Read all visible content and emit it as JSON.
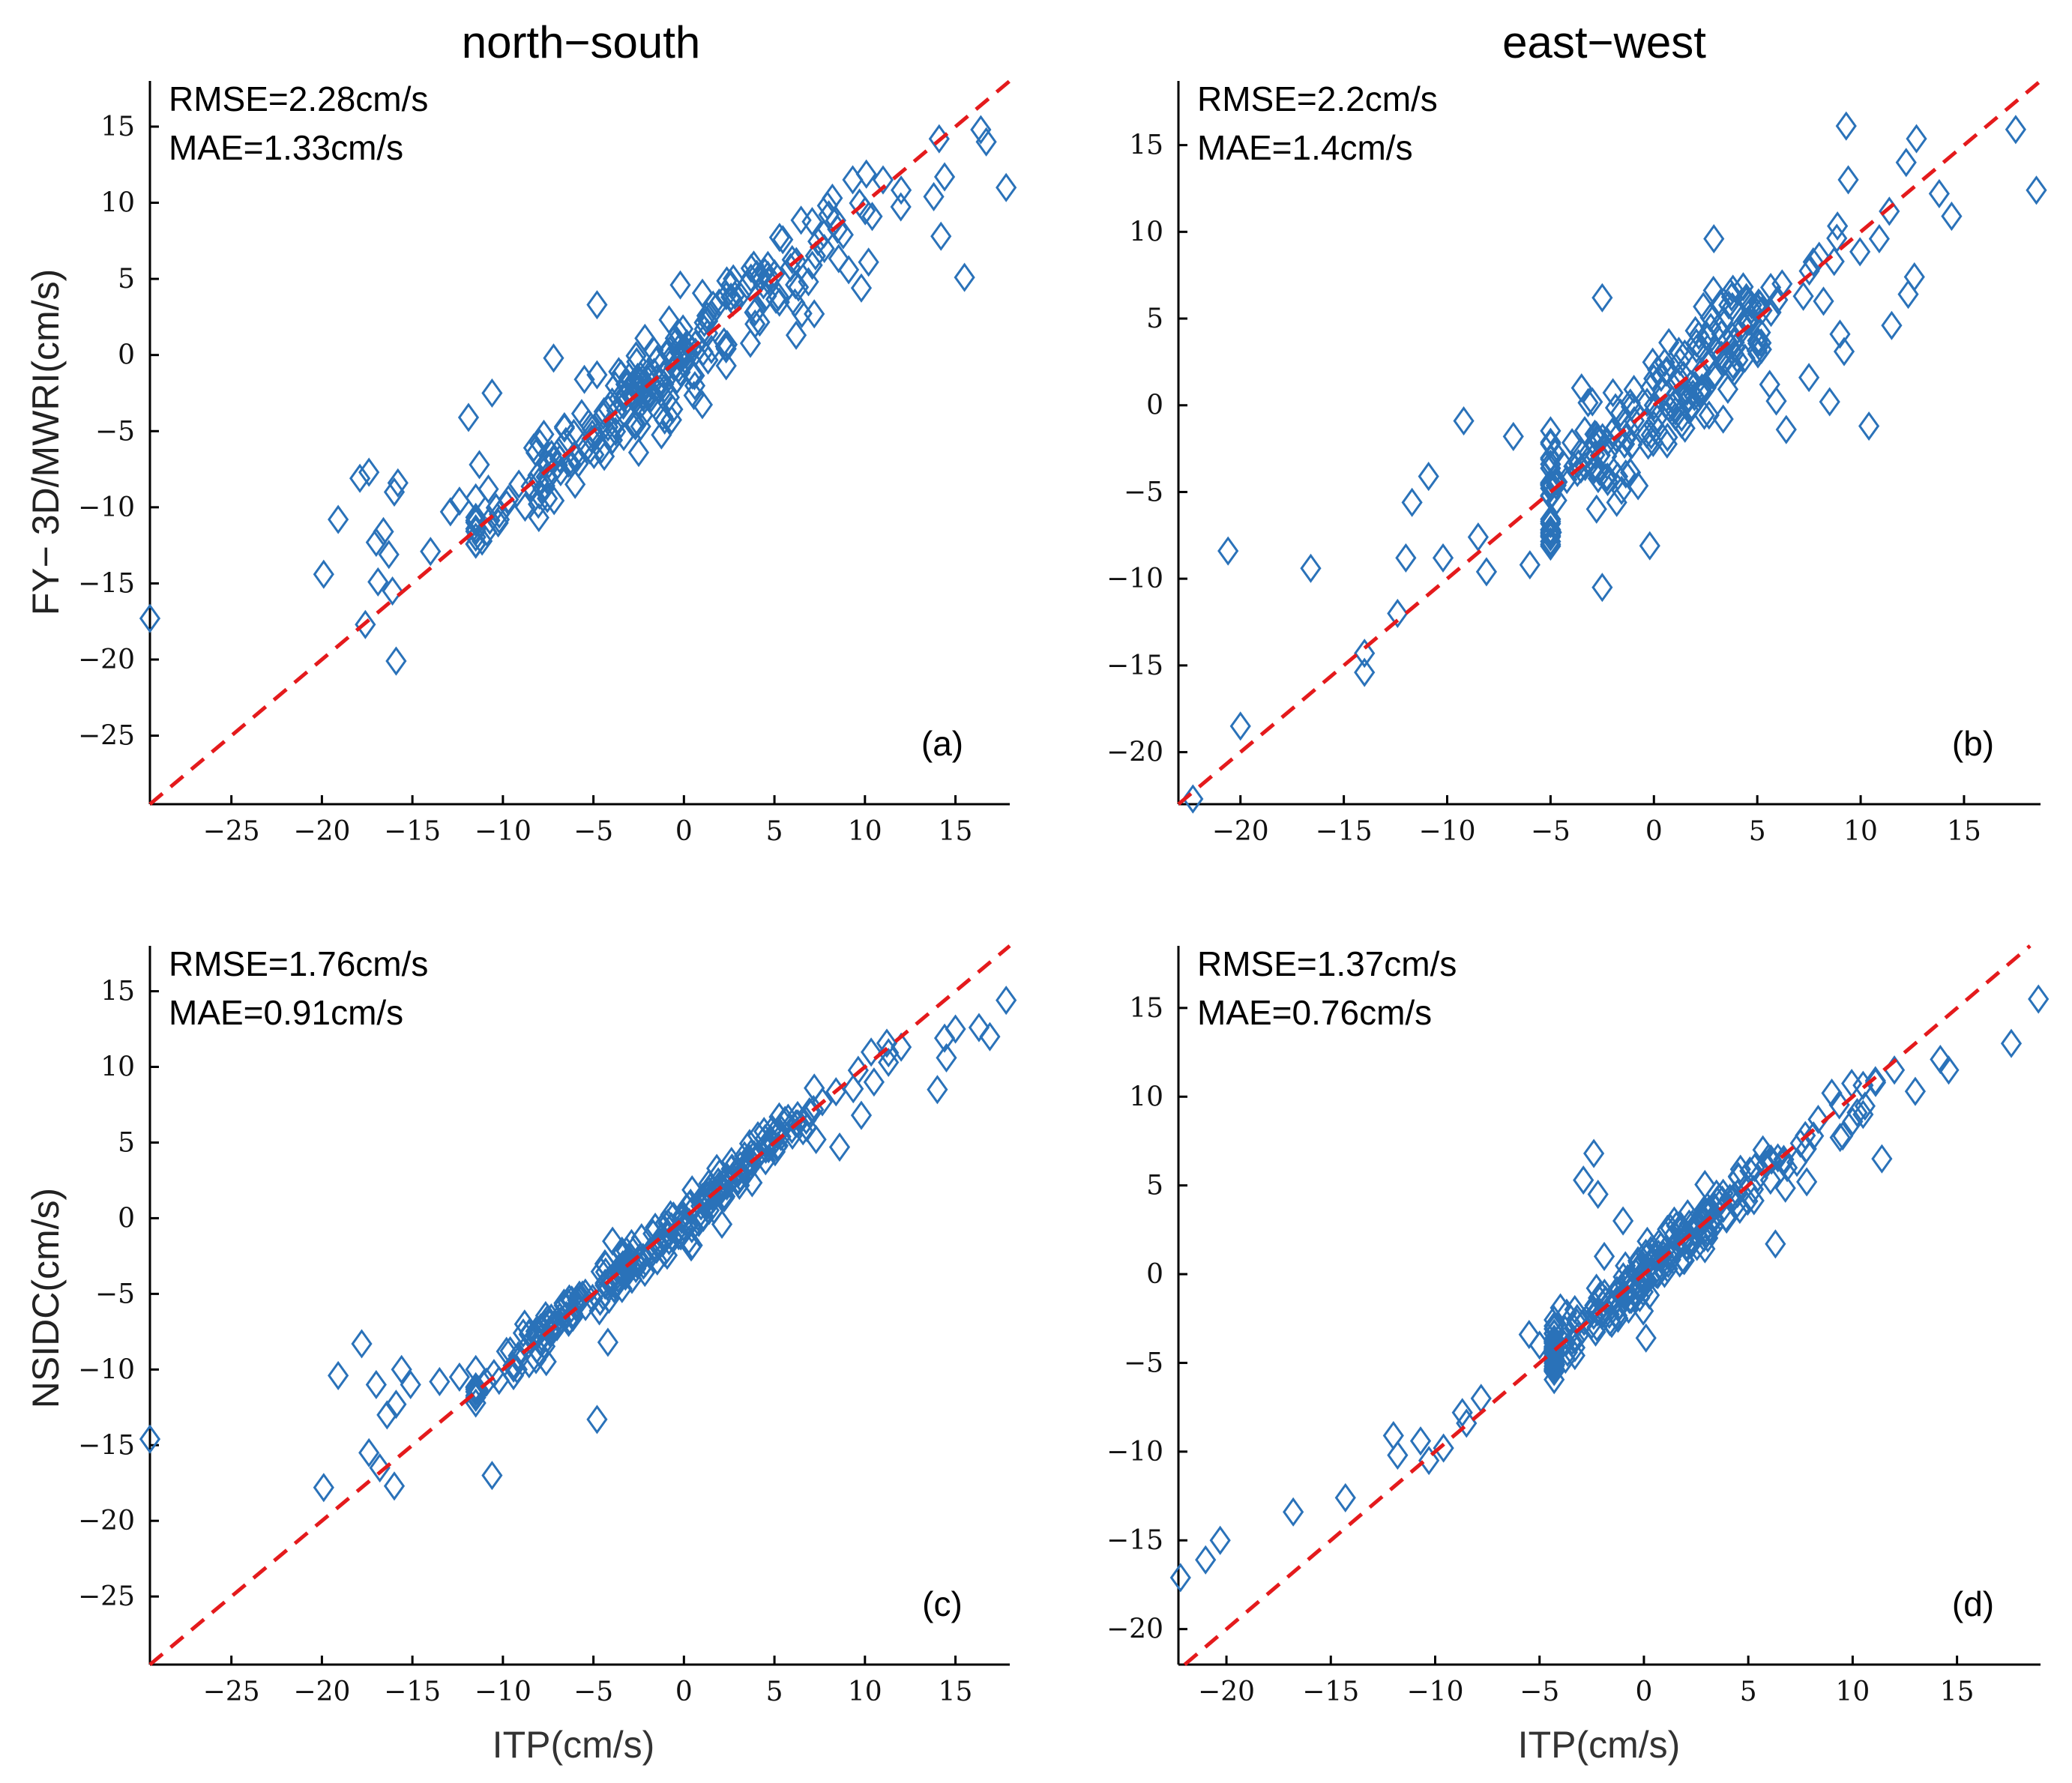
{
  "figure": {
    "column_titles": [
      "north−south",
      "east−west"
    ],
    "ylabels": [
      "FY− 3D/MWRI(cm/s)",
      "NSIDC(cm/s)"
    ],
    "xlabel": "ITP(cm/s)"
  },
  "colors": {
    "marker": "#2a72b9",
    "reference_line": "#e41a1c"
  },
  "chart_data": [
    {
      "type": "scatter",
      "panel": "(a)",
      "direction": "north−south",
      "title": "north−south",
      "xlabel": "",
      "ylabel": "FY− 3D/MWRI(cm/s)",
      "xlim": [
        -29.5,
        18
      ],
      "ylim": [
        -29.5,
        18
      ],
      "xticks": [
        -25,
        -20,
        -15,
        -10,
        -5,
        0,
        5,
        10,
        15
      ],
      "yticks": [
        -25,
        -20,
        -15,
        -10,
        -5,
        0,
        5,
        10,
        15
      ],
      "xtick_labels": [
        "−25",
        "−20",
        "−15",
        "−10",
        "−5",
        "0",
        "5",
        "10",
        "15"
      ],
      "ytick_labels": [
        "−25",
        "−20",
        "−15",
        "−10",
        "−5",
        "0",
        "5",
        "10",
        "15"
      ],
      "rmse_label": "RMSE=2.28cm/s",
      "mae_label": "MAE=1.33cm/s",
      "reference_line": "y = x",
      "trend": {
        "scatter_sd": 1.4,
        "n_bulk": 230,
        "x_mean": -1.5,
        "x_sd": 5.5
      },
      "points": [
        [
          -29.5,
          -17.3
        ],
        [
          -19.9,
          -14.4
        ],
        [
          -19.1,
          -10.8
        ],
        [
          -17.9,
          -8.1
        ],
        [
          -17.4,
          -7.7
        ],
        [
          -17.0,
          -12.3
        ],
        [
          -16.6,
          -11.6
        ],
        [
          -16.0,
          -9.0
        ],
        [
          -15.8,
          -8.4
        ],
        [
          -17.6,
          -17.7
        ],
        [
          -16.9,
          -14.9
        ],
        [
          -16.3,
          -13.1
        ],
        [
          -16.1,
          -15.5
        ],
        [
          -15.9,
          -20.1
        ],
        [
          -14.0,
          -12.9
        ],
        [
          -12.9,
          -10.3
        ],
        [
          -12.4,
          -9.6
        ],
        [
          -11.9,
          -4.1
        ],
        [
          -11.5,
          -12.4
        ],
        [
          -11.3,
          -7.2
        ],
        [
          -10.6,
          -2.5
        ],
        [
          -10.2,
          -10.8
        ],
        [
          -9.8,
          -9.8
        ],
        [
          -8.3,
          -6.1
        ],
        [
          -7.2,
          -0.2
        ],
        [
          -6.6,
          -4.8
        ],
        [
          -5.5,
          -1.6
        ],
        [
          -4.8,
          -1.3
        ],
        [
          -4.8,
          3.3
        ],
        [
          -2.5,
          -6.4
        ],
        [
          -0.2,
          4.6
        ],
        [
          0.2,
          0.2
        ],
        [
          2.6,
          3.8
        ],
        [
          6.2,
          1.3
        ],
        [
          7.2,
          2.7
        ],
        [
          8.2,
          10.3
        ],
        [
          8.8,
          7.9
        ],
        [
          9.1,
          5.6
        ],
        [
          9.8,
          4.4
        ],
        [
          10.2,
          6.1
        ],
        [
          10.4,
          9.1
        ],
        [
          11.0,
          11.5
        ],
        [
          13.8,
          10.4
        ],
        [
          14.1,
          14.2
        ],
        [
          14.2,
          7.8
        ],
        [
          14.4,
          11.7
        ],
        [
          15.5,
          5.1
        ],
        [
          16.4,
          14.8
        ],
        [
          16.7,
          14.0
        ],
        [
          17.8,
          11.0
        ]
      ]
    },
    {
      "type": "scatter",
      "panel": "(b)",
      "direction": "east−west",
      "title": "east−west",
      "xlabel": "",
      "ylabel": "",
      "xlim": [
        -23,
        18.7
      ],
      "ylim": [
        -23,
        18.7
      ],
      "xticks": [
        -20,
        -15,
        -10,
        -5,
        0,
        5,
        10,
        15
      ],
      "yticks": [
        -20,
        -15,
        -10,
        -5,
        0,
        5,
        10,
        15
      ],
      "xtick_labels": [
        "−20",
        "−15",
        "−10",
        "−5",
        "0",
        "5",
        "10",
        "15"
      ],
      "ytick_labels": [
        "−20",
        "−15",
        "−10",
        "−5",
        "0",
        "5",
        "10",
        "15"
      ],
      "rmse_label": "RMSE=2.2cm/s",
      "mae_label": "MAE=1.4cm/s",
      "reference_line": "y = x",
      "trend": {
        "scatter_sd": 1.6,
        "n_bulk": 220,
        "x_mean": 0.3,
        "x_sd": 4.5
      },
      "points": [
        [
          -22.3,
          -22.7
        ],
        [
          -20.6,
          -8.4
        ],
        [
          -20.0,
          -18.5
        ],
        [
          -16.6,
          -9.4
        ],
        [
          -14.0,
          -14.3
        ],
        [
          -14.0,
          -15.4
        ],
        [
          -12.4,
          -12.0
        ],
        [
          -12.0,
          -8.8
        ],
        [
          -11.7,
          -5.6
        ],
        [
          -10.9,
          -4.1
        ],
        [
          -10.2,
          -8.8
        ],
        [
          -9.2,
          -0.9
        ],
        [
          -8.5,
          -7.6
        ],
        [
          -8.1,
          -9.6
        ],
        [
          -6.8,
          -1.8
        ],
        [
          -6.0,
          -9.2
        ],
        [
          -3.5,
          1.0
        ],
        [
          -2.5,
          6.2
        ],
        [
          -2.5,
          -10.5
        ],
        [
          -1.8,
          -5.6
        ],
        [
          -0.2,
          -8.1
        ],
        [
          0.2,
          -1.5
        ],
        [
          2.9,
          9.6
        ],
        [
          5.6,
          1.2
        ],
        [
          6.2,
          7.0
        ],
        [
          6.4,
          -1.4
        ],
        [
          7.5,
          1.6
        ],
        [
          8.5,
          0.2
        ],
        [
          9.0,
          4.1
        ],
        [
          9.3,
          16.1
        ],
        [
          9.2,
          3.1
        ],
        [
          9.4,
          13.0
        ],
        [
          10.4,
          -1.2
        ],
        [
          10.9,
          9.6
        ],
        [
          11.5,
          4.6
        ],
        [
          12.2,
          14.0
        ],
        [
          12.3,
          6.4
        ],
        [
          12.6,
          7.4
        ],
        [
          13.8,
          12.2
        ],
        [
          14.4,
          10.9
        ],
        [
          17.5,
          15.9
        ],
        [
          18.5,
          12.4
        ]
      ]
    },
    {
      "type": "scatter",
      "panel": "(c)",
      "direction": "north−south",
      "title": "",
      "xlabel": "ITP(cm/s)",
      "ylabel": "NSIDC(cm/s)",
      "xlim": [
        -29.5,
        18
      ],
      "ylim": [
        -29.5,
        18
      ],
      "xticks": [
        -25,
        -20,
        -15,
        -10,
        -5,
        0,
        5,
        10,
        15
      ],
      "yticks": [
        -25,
        -20,
        -15,
        -10,
        -5,
        0,
        5,
        10,
        15
      ],
      "xtick_labels": [
        "−25",
        "−20",
        "−15",
        "−10",
        "−5",
        "0",
        "5",
        "10",
        "15"
      ],
      "ytick_labels": [
        "−25",
        "−20",
        "−15",
        "−10",
        "−5",
        "0",
        "5",
        "10",
        "15"
      ],
      "rmse_label": "RMSE=1.76cm/s",
      "mae_label": "MAE=0.91cm/s",
      "reference_line": "y = x",
      "trend": {
        "scatter_sd": 0.7,
        "n_bulk": 260,
        "x_mean": -1.0,
        "x_sd": 5.5
      },
      "points": [
        [
          -29.5,
          -14.6
        ],
        [
          -19.9,
          -17.8
        ],
        [
          -19.1,
          -10.4
        ],
        [
          -17.8,
          -8.3
        ],
        [
          -17.4,
          -15.5
        ],
        [
          -17.0,
          -11.0
        ],
        [
          -16.8,
          -16.5
        ],
        [
          -16.4,
          -13.0
        ],
        [
          -16.0,
          -17.7
        ],
        [
          -15.9,
          -12.3
        ],
        [
          -15.6,
          -10.0
        ],
        [
          -15.1,
          -11.0
        ],
        [
          -13.5,
          -10.8
        ],
        [
          -12.4,
          -10.5
        ],
        [
          -11.5,
          -10.0
        ],
        [
          -10.6,
          -17.0
        ],
        [
          -9.8,
          -8.8
        ],
        [
          -8.8,
          -7.0
        ],
        [
          -4.8,
          -13.3
        ],
        [
          -4.2,
          -8.2
        ],
        [
          0.4,
          -1.9
        ],
        [
          2.1,
          -0.4
        ],
        [
          7.3,
          5.2
        ],
        [
          8.6,
          4.7
        ],
        [
          9.8,
          6.8
        ],
        [
          10.5,
          9.0
        ],
        [
          11.3,
          10.3
        ],
        [
          14.0,
          8.5
        ],
        [
          14.4,
          11.9
        ],
        [
          14.5,
          10.6
        ],
        [
          15.0,
          12.5
        ],
        [
          16.3,
          12.6
        ],
        [
          16.9,
          12.0
        ],
        [
          17.8,
          14.4
        ]
      ]
    },
    {
      "type": "scatter",
      "panel": "(d)",
      "direction": "east−west",
      "title": "",
      "xlabel": "ITP(cm/s)",
      "ylabel": "",
      "xlim": [
        -22.3,
        19
      ],
      "ylim": [
        -22,
        18.5
      ],
      "xticks": [
        -20,
        -15,
        -10,
        -5,
        0,
        5,
        10,
        15
      ],
      "yticks": [
        -20,
        -15,
        -10,
        -5,
        0,
        5,
        10,
        15
      ],
      "xtick_labels": [
        "−20",
        "−15",
        "−10",
        "−5",
        "0",
        "5",
        "10",
        "15"
      ],
      "ytick_labels": [
        "−20",
        "−15",
        "−10",
        "−5",
        "0",
        "5",
        "10",
        "15"
      ],
      "rmse_label": "RMSE=1.37cm/s",
      "mae_label": "MAE=0.76cm/s",
      "reference_line": "y = x",
      "trend": {
        "scatter_sd": 0.8,
        "n_bulk": 240,
        "x_mean": 0.5,
        "x_sd": 4.3
      },
      "points": [
        [
          -22.2,
          -17.1
        ],
        [
          -21.0,
          -16.1
        ],
        [
          -20.3,
          -15.0
        ],
        [
          -16.8,
          -13.4
        ],
        [
          -14.3,
          -12.6
        ],
        [
          -12.0,
          -9.1
        ],
        [
          -11.8,
          -10.2
        ],
        [
          -10.7,
          -9.4
        ],
        [
          -10.3,
          -10.5
        ],
        [
          -9.6,
          -9.8
        ],
        [
          -8.7,
          -7.8
        ],
        [
          -8.5,
          -8.4
        ],
        [
          -7.8,
          -7.0
        ],
        [
          -5.5,
          -3.4
        ],
        [
          -5.0,
          -4.0
        ],
        [
          -4.0,
          -1.9
        ],
        [
          -3.7,
          -2.2
        ],
        [
          -3.2,
          -2.5
        ],
        [
          -2.9,
          5.3
        ],
        [
          -2.4,
          6.8
        ],
        [
          -2.2,
          4.5
        ],
        [
          -1.9,
          1.0
        ],
        [
          -1.0,
          3.0
        ],
        [
          0.1,
          -3.6
        ],
        [
          0.5,
          1.0
        ],
        [
          6.3,
          1.7
        ],
        [
          7.8,
          5.2
        ],
        [
          9.0,
          10.2
        ],
        [
          9.4,
          7.7
        ],
        [
          10.0,
          8.6
        ],
        [
          10.5,
          9.0
        ],
        [
          11.1,
          10.8
        ],
        [
          11.4,
          6.5
        ],
        [
          12.0,
          11.5
        ],
        [
          13.0,
          10.3
        ],
        [
          14.2,
          12.1
        ],
        [
          14.6,
          11.5
        ],
        [
          17.6,
          13.0
        ],
        [
          18.9,
          15.5
        ]
      ]
    }
  ]
}
